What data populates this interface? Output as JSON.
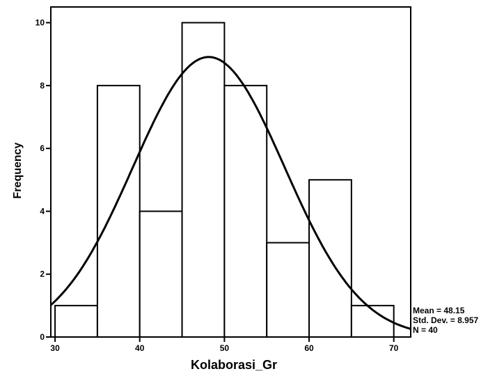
{
  "chart_data": {
    "type": "histogram",
    "x_label": "Kolaborasi_Gr",
    "y_label": "Frequency",
    "bins": [
      30,
      35,
      40,
      45,
      50,
      55,
      60,
      65,
      70
    ],
    "values": [
      1,
      8,
      4,
      10,
      8,
      3,
      5,
      1
    ],
    "color": "#ffffff",
    "xlim": [
      29.5,
      72
    ],
    "ylim": [
      0,
      10.5
    ],
    "xticks": [
      30,
      40,
      50,
      60,
      70
    ],
    "yticks": [
      0,
      2,
      4,
      6,
      8,
      10
    ],
    "stats": [
      {
        "label": "Mean = 48.15",
        "value": 48.15
      },
      {
        "label": "Std. Dev. = 8.957",
        "value": 8.957
      },
      {
        "label": "N = 40",
        "value": 40
      }
    ]
  }
}
